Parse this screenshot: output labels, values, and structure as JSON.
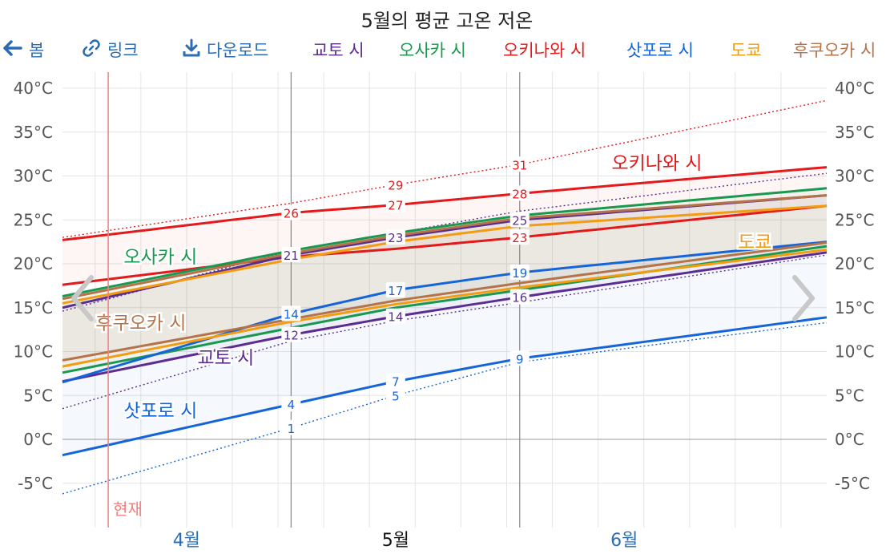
{
  "title": "5월의 평균 고온 저온",
  "toolbar": {
    "prev_label": "봄",
    "link_label": "링크",
    "download_label": "다운로드"
  },
  "legend": [
    {
      "label": "교토 시",
      "color": "#5b2d90"
    },
    {
      "label": "오사카 시",
      "color": "#1a9850"
    },
    {
      "label": "오키나와 시",
      "color": "#e31a1c"
    },
    {
      "label": "삿포로 시",
      "color": "#1565d8"
    },
    {
      "label": "도쿄",
      "color": "#f39c12"
    },
    {
      "label": "후쿠오카 시",
      "color": "#b5734a"
    }
  ],
  "colors": {
    "ui_blue": "#2a6db5",
    "now_line": "#f08080"
  },
  "icons": {
    "prev": "arrow-left-icon",
    "link": "link-icon",
    "download": "download-icon",
    "nav_prev": "chevron-left-icon",
    "nav_next": "chevron-right-icon"
  },
  "chart_data": {
    "type": "line",
    "ylim": [
      -8,
      42
    ],
    "y_ticks": [
      40,
      35,
      30,
      25,
      20,
      15,
      10,
      5,
      0,
      -5
    ],
    "y_unit": "°C",
    "x_range": [
      -51,
      66
    ],
    "x_labels": [
      {
        "label": "4월",
        "x": -32
      },
      {
        "label": "5월",
        "x": 0,
        "bold": true
      },
      {
        "label": "6월",
        "x": 35
      }
    ],
    "month_boundaries": [
      -16,
      19
    ],
    "now_label": "현재",
    "now_x": -44,
    "series": [
      {
        "name": "오키나와 시",
        "color": "#e31a1c",
        "high": [
          [
            -51,
            22.7
          ],
          [
            -16,
            25.8
          ],
          [
            0,
            26.7
          ],
          [
            19,
            28.0
          ],
          [
            66,
            31.0
          ]
        ],
        "low": [
          [
            -51,
            17.6
          ],
          [
            -16,
            20.8
          ],
          [
            0,
            21.7
          ],
          [
            19,
            23.0
          ],
          [
            66,
            26.6
          ]
        ],
        "record_high": [
          [
            -51,
            23.0
          ],
          [
            -16,
            26.9
          ],
          [
            0,
            29.0
          ],
          [
            19,
            31.3
          ],
          [
            66,
            38.6
          ]
        ],
        "label_high": [
          [
            -16,
            26
          ],
          [
            0,
            27
          ],
          [
            19,
            28
          ]
        ],
        "label_low": [
          [
            19,
            23
          ]
        ],
        "label_record": [
          [
            0,
            29
          ],
          [
            19,
            31
          ]
        ],
        "name_pos": [
          40,
          31.5
        ]
      },
      {
        "name": "오사카 시",
        "color": "#1a9850",
        "high": [
          [
            -51,
            16.3
          ],
          [
            -16,
            21.5
          ],
          [
            0,
            23.5
          ],
          [
            19,
            25.5
          ],
          [
            66,
            28.6
          ]
        ],
        "low": [
          [
            -51,
            7.6
          ],
          [
            -16,
            12.7
          ],
          [
            0,
            15.0
          ],
          [
            19,
            17.0
          ],
          [
            66,
            22.0
          ]
        ],
        "name_pos": [
          -36,
          20.8
        ]
      },
      {
        "name": "교토 시",
        "color": "#5b2d90",
        "high": [
          [
            -51,
            15.0
          ],
          [
            -16,
            21.0
          ],
          [
            0,
            23.0
          ],
          [
            19,
            25.0
          ],
          [
            66,
            27.8
          ]
        ],
        "low": [
          [
            -51,
            6.6
          ],
          [
            -16,
            11.9
          ],
          [
            0,
            14.0
          ],
          [
            19,
            16.2
          ],
          [
            66,
            21.3
          ]
        ],
        "record_high": [
          [
            -51,
            14.6
          ],
          [
            -16,
            21.5
          ],
          [
            0,
            23.5
          ],
          [
            19,
            26.0
          ],
          [
            66,
            30.3
          ]
        ],
        "record_low": [
          [
            -51,
            3.5
          ],
          [
            -16,
            11.2
          ],
          [
            0,
            13.5
          ],
          [
            19,
            15.6
          ],
          [
            66,
            21.0
          ]
        ],
        "label_high": [
          [
            -16,
            21
          ],
          [
            0,
            23
          ],
          [
            19,
            25
          ]
        ],
        "label_low": [
          [
            -16,
            12
          ],
          [
            0,
            14
          ],
          [
            19,
            16
          ]
        ],
        "name_pos": [
          -26,
          9.3
        ]
      },
      {
        "name": "삿포로 시",
        "color": "#1565d8",
        "high": [
          [
            -51,
            6.5
          ],
          [
            -16,
            14.3
          ],
          [
            0,
            17.0
          ],
          [
            19,
            19.0
          ],
          [
            66,
            22.5
          ]
        ],
        "low": [
          [
            -51,
            -1.8
          ],
          [
            -16,
            4.0
          ],
          [
            0,
            6.6
          ],
          [
            19,
            9.2
          ],
          [
            66,
            13.9
          ]
        ],
        "record_low": [
          [
            -51,
            -6.2
          ],
          [
            -16,
            1.3
          ],
          [
            0,
            5.0
          ],
          [
            19,
            8.8
          ],
          [
            66,
            13.3
          ]
        ],
        "label_high": [
          [
            -16,
            14
          ],
          [
            0,
            17
          ],
          [
            19,
            19
          ]
        ],
        "label_low": [
          [
            -16,
            4
          ],
          [
            0,
            7
          ],
          [
            19,
            9
          ]
        ],
        "label_record": [
          [
            -16,
            1
          ],
          [
            0,
            5
          ]
        ],
        "name_pos": [
          -36,
          3.3
        ]
      },
      {
        "name": "도쿄",
        "color": "#f39c12",
        "high": [
          [
            -51,
            15.5
          ],
          [
            -16,
            20.5
          ],
          [
            0,
            22.5
          ],
          [
            19,
            24.3
          ],
          [
            66,
            26.6
          ]
        ],
        "low": [
          [
            -51,
            8.3
          ],
          [
            -16,
            13.4
          ],
          [
            0,
            15.4
          ],
          [
            19,
            17.3
          ],
          [
            66,
            21.6
          ]
        ],
        "name_pos": [
          55,
          22.5
        ]
      },
      {
        "name": "후쿠오카 시",
        "color": "#b5734a",
        "high": [
          [
            -51,
            16.0
          ],
          [
            -16,
            21.2
          ],
          [
            0,
            23.2
          ],
          [
            19,
            25.2
          ],
          [
            66,
            27.8
          ]
        ],
        "low": [
          [
            -51,
            9.0
          ],
          [
            -16,
            13.7
          ],
          [
            0,
            15.8
          ],
          [
            19,
            17.8
          ],
          [
            66,
            22.4
          ]
        ],
        "name_pos": [
          -39,
          13.3
        ]
      }
    ]
  }
}
